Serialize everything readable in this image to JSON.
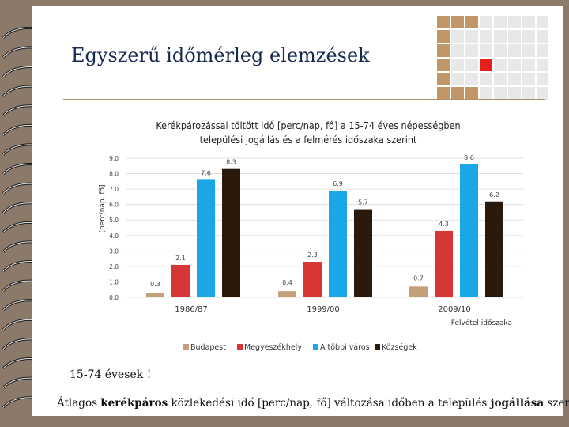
{
  "slide": {
    "title": "Egyszerű időmérleg elemzések",
    "note": "15-74 évesek !",
    "caption_parts": [
      "Átlagos ",
      "kerékpáros",
      " közlekedési idő [perc/nap, fő] változása időben a település ",
      "jogállása",
      " szerint"
    ]
  },
  "colors": {
    "background": "#8b7a6a",
    "rule": "#b08d63",
    "grid_brown": "#c1976a",
    "grid_red": "#e8201a",
    "grid_light": "#e8e8e8"
  },
  "chart_data": {
    "type": "bar",
    "title_lines": [
      "Kerékpározással töltött idő [perc/nap, fő] a 15-74 éves népességben",
      "települési jogállás és a felmérés időszaka szerint"
    ],
    "ylabel": "[perc/nap, fő]",
    "xlabel": "Felvétel időszaka",
    "ylim": [
      0,
      9
    ],
    "yticks": [
      "0.0",
      "1.0",
      "2.0",
      "3.0",
      "4.0",
      "5.0",
      "6.0",
      "7.0",
      "8.0",
      "9.0"
    ],
    "categories": [
      "1986/87",
      "1999/00",
      "2009/10"
    ],
    "series": [
      {
        "name": "Budapest",
        "color": "#c4a07a",
        "values": [
          0.3,
          0.4,
          0.7
        ]
      },
      {
        "name": "Megyeszékhely",
        "color": "#d63636",
        "values": [
          2.1,
          2.3,
          4.3
        ]
      },
      {
        "name": "A többi város",
        "color": "#1aa7e8",
        "values": [
          7.6,
          6.9,
          8.6
        ]
      },
      {
        "name": "Községek",
        "color": "#2b1a0c",
        "values": [
          8.3,
          5.7,
          6.2
        ]
      }
    ],
    "data_labels": [
      [
        "0.3",
        "0.4",
        "0.7"
      ],
      [
        "2.1",
        "2.3",
        "4.3"
      ],
      [
        "7.6",
        "6.9",
        "8.6"
      ],
      [
        "8.3",
        "5.7",
        "6.2"
      ]
    ],
    "legend_position": "bottom"
  }
}
